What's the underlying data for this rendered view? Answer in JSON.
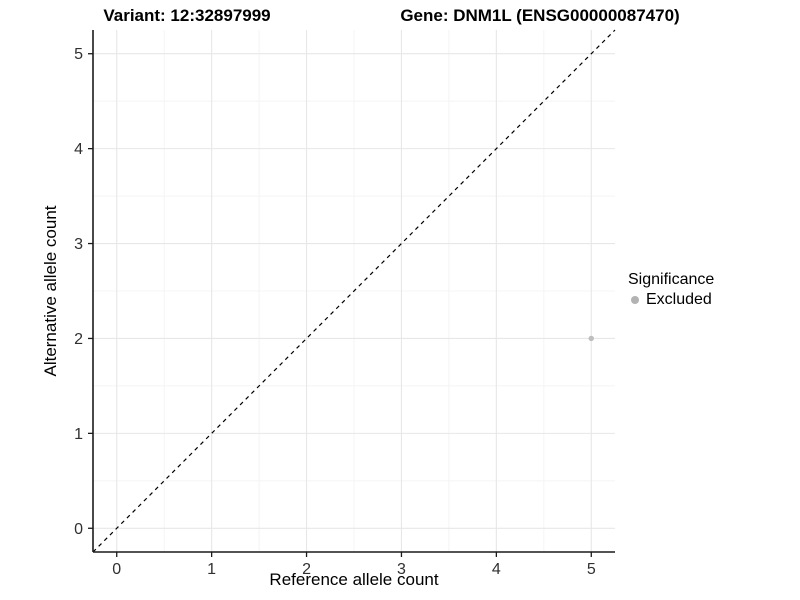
{
  "chart_data": {
    "type": "scatter",
    "title_left": "Variant: 12:32897999",
    "title_right": "Gene: DNM1L (ENSG00000087470)",
    "xlabel": "Reference allele count",
    "ylabel": "Alternative allele count",
    "xlim": [
      -0.25,
      5.25
    ],
    "ylim": [
      -0.25,
      5.25
    ],
    "xticks": [
      0,
      1,
      2,
      3,
      4,
      5
    ],
    "yticks": [
      0,
      1,
      2,
      3,
      4,
      5
    ],
    "grid": "major and minor gridlines on white background",
    "points": [
      {
        "x": 5,
        "y": 2,
        "series": "Excluded"
      }
    ],
    "reference_line": {
      "type": "identity y=x",
      "style": "dashed",
      "from": [
        -0.25,
        -0.25
      ],
      "to": [
        5.25,
        5.25
      ]
    },
    "legend": {
      "title": "Significance",
      "position": "right",
      "entries": [
        {
          "label": "Excluded",
          "color": "#b8b8b8"
        }
      ]
    }
  },
  "colors": {
    "point": "#bebebe",
    "legend_key": "#b3b3b3",
    "grid_major": "#e7e7e7",
    "grid_minor": "#f4f4f4",
    "axis_line": "#1a1a1a",
    "tick_label": "#303030",
    "reference_line": "#000000"
  }
}
